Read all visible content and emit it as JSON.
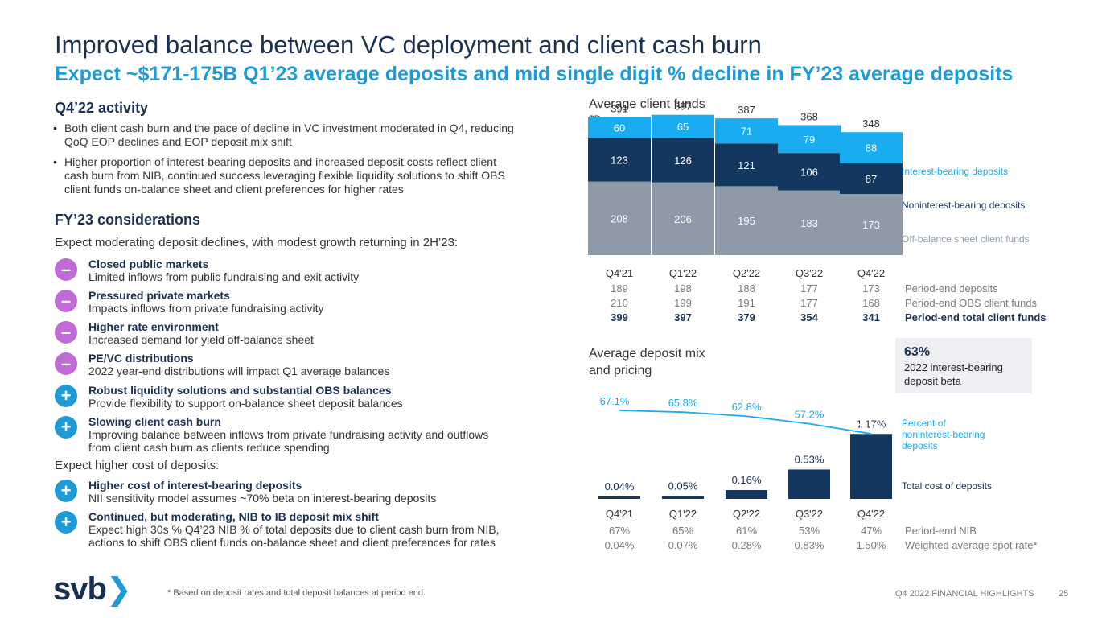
{
  "title": "Improved balance between VC deployment and client cash burn",
  "subtitle": "Expect ~$171-175B Q1’23 average deposits and mid single digit % decline in FY’23 average deposits",
  "activity": {
    "heading": "Q4’22 activity",
    "bullets": [
      "Both client cash burn and the pace of decline in VC investment moderated in Q4, reducing QoQ EOP declines and EOP deposit mix shift",
      "Higher proportion of interest-bearing deposits and increased deposit costs reflect client cash burn from NIB, continued success leveraging flexible liquidity solutions to shift OBS client funds on-balance sheet and client preferences for higher rates"
    ]
  },
  "considerations": {
    "heading": "FY’23 considerations",
    "intro": "Expect moderating deposit declines, with modest growth returning in 2H’23:",
    "factors": [
      {
        "sign": "–",
        "title": "Closed public markets",
        "desc": "Limited inflows from public fundraising and exit activity"
      },
      {
        "sign": "–",
        "title": "Pressured private markets",
        "desc": "Impacts inflows from private fundraising activity"
      },
      {
        "sign": "–",
        "title": "Higher rate environment",
        "desc": "Increased demand for yield off-balance sheet"
      },
      {
        "sign": "–",
        "title": "PE/VC distributions",
        "desc": "2022 year-end distributions will impact Q1 average balances"
      },
      {
        "sign": "+",
        "title": "Robust liquidity solutions and substantial OBS balances",
        "desc": "Provide flexibility to support on-balance sheet deposit balances"
      },
      {
        "sign": "+",
        "title": "Slowing client cash burn",
        "desc": "Improving balance between inflows from private fundraising activity and outflows from client cash burn as clients reduce spending"
      }
    ],
    "cost_intro": "Expect higher cost of deposits:",
    "cost_factors": [
      {
        "sign": "+",
        "title": "Higher cost of interest-bearing deposits",
        "desc": "NII sensitivity model assumes ~70% beta on interest-bearing deposits"
      },
      {
        "sign": "+",
        "title": "Continued, but moderating, NIB to IB deposit mix shift",
        "desc": "Expect high 30s % Q4’23 NIB % of total deposits due to client cash burn from NIB, actions to shift OBS client funds on-balance sheet and client preferences for rates"
      }
    ]
  },
  "colors": {
    "navy": "#13375e",
    "light_blue": "#1aacf0",
    "gray": "#8e9aa8",
    "purple": "#c06bd6",
    "accent": "#1e9bd7"
  },
  "chart_data": [
    {
      "type": "bar",
      "title": "Average client funds",
      "ylabel": "$B",
      "stacked": true,
      "categories": [
        "Q4'21",
        "Q1'22",
        "Q2'22",
        "Q3'22",
        "Q4'22"
      ],
      "series": [
        {
          "name": "Off-balance sheet client funds",
          "values": [
            208,
            206,
            195,
            183,
            173
          ],
          "color": "#8e9aa8"
        },
        {
          "name": "Noninterest-bearing deposits",
          "values": [
            123,
            126,
            121,
            106,
            87
          ],
          "color": "#13375e"
        },
        {
          "name": "Interest-bearing deposits",
          "values": [
            60,
            65,
            71,
            79,
            88
          ],
          "color": "#1aacf0"
        }
      ],
      "totals": [
        391,
        397,
        387,
        368,
        348
      ],
      "rows": [
        {
          "label": "Period-end deposits",
          "values": [
            "189",
            "198",
            "188",
            "177",
            "173"
          ],
          "bold": false
        },
        {
          "label": "Period-end OBS client funds",
          "values": [
            "210",
            "199",
            "191",
            "177",
            "168"
          ],
          "bold": false
        },
        {
          "label": "Period-end total client funds",
          "values": [
            "399",
            "397",
            "379",
            "354",
            "341"
          ],
          "bold": true
        }
      ]
    },
    {
      "type": "bar",
      "title": "Average deposit mix and pricing",
      "categories": [
        "Q4'21",
        "Q1'22",
        "Q2'22",
        "Q3'22",
        "Q4'22"
      ],
      "series": [
        {
          "name": "Total cost of deposits",
          "values": [
            0.04,
            0.05,
            0.16,
            0.53,
            1.17
          ],
          "labels": [
            "0.04%",
            "0.05%",
            "0.16%",
            "0.53%",
            "1.17%"
          ],
          "color": "#13375e"
        },
        {
          "name": "Percent of noninterest-bearing deposits",
          "type": "line",
          "values": [
            67.1,
            65.8,
            62.8,
            57.2,
            49.8
          ],
          "labels": [
            "67.1%",
            "65.8%",
            "62.8%",
            "57.2%",
            "49.8%"
          ],
          "color": "#1aacf0"
        }
      ],
      "rows": [
        {
          "label": "Period-end NIB",
          "values": [
            "67%",
            "65%",
            "61%",
            "53%",
            "47%"
          ]
        },
        {
          "label": "Weighted average spot rate*",
          "values": [
            "0.04%",
            "0.07%",
            "0.28%",
            "0.83%",
            "1.50%"
          ]
        }
      ],
      "callout": {
        "value": "63%",
        "text": "2022 interest-bearing deposit beta"
      }
    }
  ],
  "footer": {
    "logo_text": "svb",
    "note": "* Based on deposit rates and total deposit balances at period end.",
    "deck": "Q4 2022 FINANCIAL HIGHLIGHTS",
    "page": "25"
  }
}
